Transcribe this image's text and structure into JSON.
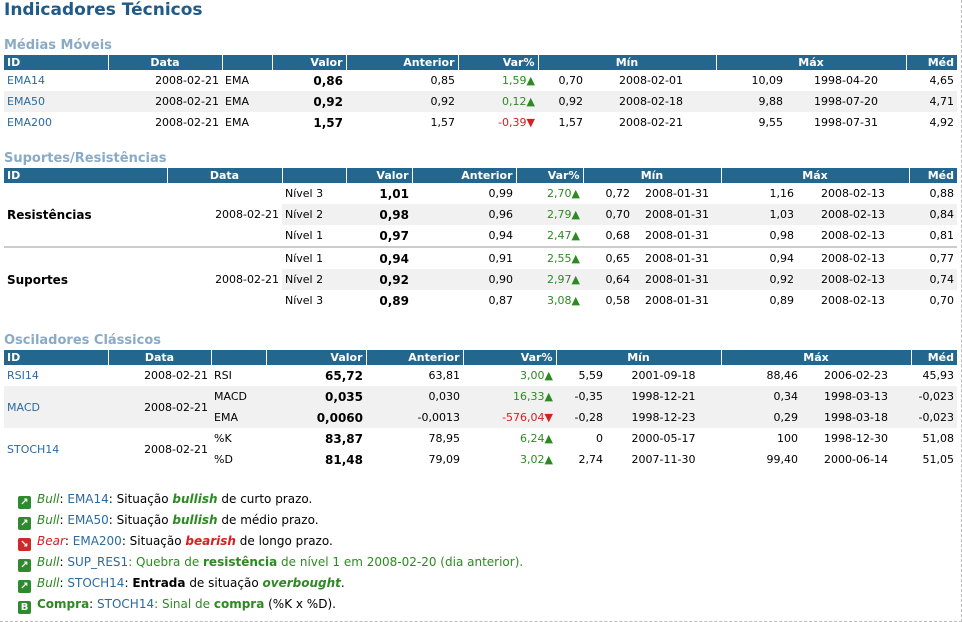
{
  "title": "Indicadores Técnicos",
  "headers": [
    "ID",
    "Data",
    "",
    "Valor",
    "Anterior",
    "Var%",
    "Mín",
    "",
    "Máx",
    "",
    "Méd"
  ],
  "moving_averages": {
    "title": "Médias Móveis",
    "rows": [
      {
        "id": "EMA14",
        "data": "2008-02-21",
        "tipo": "EMA",
        "valor": "0,86",
        "anterior": "0,85",
        "var": "1,59▲",
        "min": "0,70",
        "min_data": "2008-02-01",
        "max": "10,09",
        "max_data": "1998-04-20",
        "med": "4,65"
      },
      {
        "id": "EMA50",
        "data": "2008-02-21",
        "tipo": "EMA",
        "valor": "0,92",
        "anterior": "0,92",
        "var": "0,12▲",
        "min": "0,92",
        "min_data": "2008-02-18",
        "max": "9,88",
        "max_data": "1998-07-20",
        "med": "4,71"
      },
      {
        "id": "EMA200",
        "data": "2008-02-21",
        "tipo": "EMA",
        "valor": "1,57",
        "anterior": "1,57",
        "var": "-0,39▼",
        "min": "1,57",
        "min_data": "2008-02-21",
        "max": "9,55",
        "max_data": "1998-07-31",
        "med": "4,92"
      }
    ]
  },
  "support_resistance": {
    "title": "Suportes/Resistências",
    "groups": [
      {
        "name": "Resistências",
        "data": "2008-02-21",
        "rows": [
          {
            "nivel": "Nível 3",
            "valor": "1,01",
            "anterior": "0,99",
            "var": "2,70▲",
            "min": "0,72",
            "min_data": "2008-01-31",
            "max": "1,16",
            "max_data": "2008-02-13",
            "med": "0,88"
          },
          {
            "nivel": "Nível 2",
            "valor": "0,98",
            "anterior": "0,96",
            "var": "2,79▲",
            "min": "0,70",
            "min_data": "2008-01-31",
            "max": "1,03",
            "max_data": "2008-02-13",
            "med": "0,84"
          },
          {
            "nivel": "Nível 1",
            "valor": "0,97",
            "anterior": "0,94",
            "var": "2,47▲",
            "min": "0,68",
            "min_data": "2008-01-31",
            "max": "0,98",
            "max_data": "2008-02-13",
            "med": "0,81"
          }
        ]
      },
      {
        "name": "Suportes",
        "data": "2008-02-21",
        "rows": [
          {
            "nivel": "Nível 1",
            "valor": "0,94",
            "anterior": "0,91",
            "var": "2,55▲",
            "min": "0,65",
            "min_data": "2008-01-31",
            "max": "0,94",
            "max_data": "2008-02-13",
            "med": "0,77"
          },
          {
            "nivel": "Nível 2",
            "valor": "0,92",
            "anterior": "0,90",
            "var": "2,97▲",
            "min": "0,64",
            "min_data": "2008-01-31",
            "max": "0,92",
            "max_data": "2008-02-13",
            "med": "0,74"
          },
          {
            "nivel": "Nível 3",
            "valor": "0,89",
            "anterior": "0,87",
            "var": "3,08▲",
            "min": "0,58",
            "min_data": "2008-01-31",
            "max": "0,89",
            "max_data": "2008-02-13",
            "med": "0,70"
          }
        ]
      }
    ]
  },
  "oscillators": {
    "title": "Osciladores Clássicos",
    "rsi": {
      "id": "RSI14",
      "data": "2008-02-21",
      "tipo": "RSI",
      "valor": "65,72",
      "anterior": "63,81",
      "var": "3,00▲",
      "min": "5,59",
      "min_data": "2001-09-18",
      "max": "88,46",
      "max_data": "2006-02-23",
      "med": "45,93"
    },
    "macd": {
      "id": "MACD",
      "data": "2008-02-21",
      "rows": [
        {
          "tipo": "MACD",
          "valor": "0,035",
          "anterior": "0,030",
          "var": "16,33▲",
          "min": "-0,35",
          "min_data": "1998-12-21",
          "max": "0,34",
          "max_data": "1998-03-13",
          "med": "-0,023"
        },
        {
          "tipo": "EMA",
          "valor": "0,0060",
          "anterior": "-0,0013",
          "var": "-576,04▼",
          "min": "-0,28",
          "min_data": "1998-12-23",
          "max": "0,29",
          "max_data": "1998-03-18",
          "med": "-0,023"
        }
      ]
    },
    "stoch": {
      "id": "STOCH14",
      "data": "2008-02-21",
      "rows": [
        {
          "tipo": "%K",
          "valor": "83,87",
          "anterior": "78,95",
          "var": "6,24▲",
          "min": "0",
          "min_data": "2000-05-17",
          "max": "100",
          "max_data": "1998-12-30",
          "med": "51,08"
        },
        {
          "tipo": "%D",
          "valor": "81,48",
          "anterior": "79,09",
          "var": "3,02▲",
          "min": "2,74",
          "min_data": "2007-11-30",
          "max": "99,40",
          "max_data": "2000-06-14",
          "med": "51,05"
        }
      ]
    }
  },
  "alerts": [
    {
      "icon": "bull-arrow-icon",
      "label": "Bull",
      "sep": ": ",
      "ind": "EMA14",
      "t1": ": Situação ",
      "key": "bullish",
      "t2": " de curto prazo."
    },
    {
      "icon": "bull-arrow-icon",
      "label": "Bull",
      "sep": ": ",
      "ind": "EMA50",
      "t1": ": Situação ",
      "key": "bullish",
      "t2": " de médio prazo."
    },
    {
      "icon": "bear-arrow-icon",
      "label": "Bear",
      "sep": ": ",
      "ind": "EMA200",
      "t1": ": Situação ",
      "key": "bearish",
      "t2": " de longo prazo."
    },
    {
      "icon": "bull-arrow-icon",
      "label": "Bull",
      "sep": ": ",
      "ind": "SUP_RES1",
      "t1": ": Quebra de ",
      "key": "resistência",
      "t2": " de nível 1 em 2008-02-20 (dia anterior)."
    },
    {
      "icon": "bull-arrow-icon",
      "label": "Bull",
      "sep": ": ",
      "ind": "STOCH14",
      "t1": ": ",
      "key1": "Entrada",
      "t1b": " de situação ",
      "key": "overbought",
      "t2": "."
    },
    {
      "icon": "buy-signal-icon",
      "label": "Compra",
      "sep": ": ",
      "ind": "STOCH14",
      "t1": ": Sinal de ",
      "key": "compra",
      "t2": " (%K x %D)."
    }
  ],
  "icon_glyphs": {
    "up": "↗",
    "down": "↘",
    "buy": "B"
  }
}
